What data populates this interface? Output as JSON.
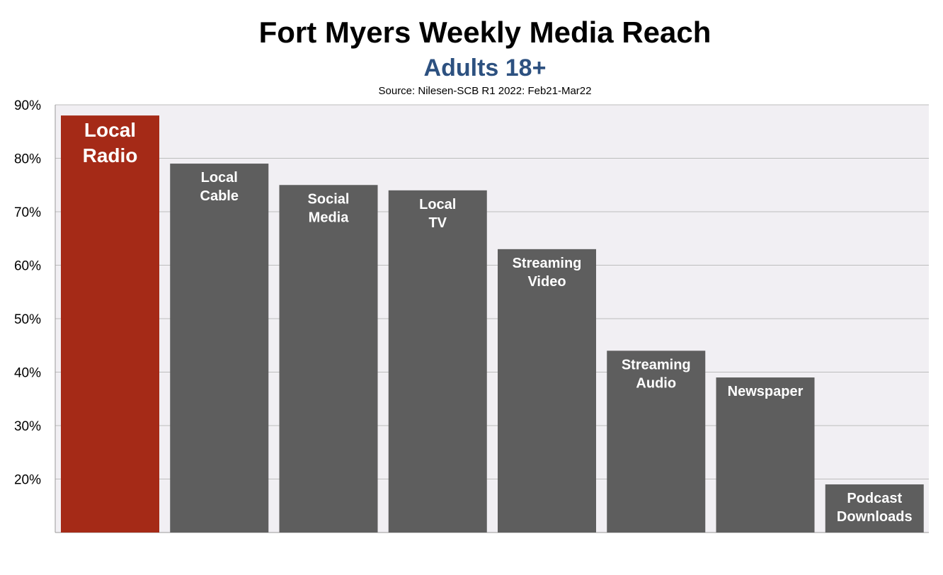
{
  "chart_data": {
    "type": "bar",
    "title": "Fort Myers Weekly Media Reach",
    "subtitle": "Adults 18+",
    "source": "Source: Nilesen-SCB R1 2022: Feb21-Mar22",
    "categories": [
      "Local Radio",
      "Local Cable",
      "Social Media",
      "Local TV",
      "Streaming Video",
      "Streaming Audio",
      "Newspaper",
      "Podcast Downloads"
    ],
    "bar_labels": [
      [
        "Local",
        "Radio"
      ],
      [
        "Local",
        "Cable"
      ],
      [
        "Social",
        "Media"
      ],
      [
        "Local",
        "TV"
      ],
      [
        "Streaming",
        "Video"
      ],
      [
        "Streaming",
        "Audio"
      ],
      [
        "Newspaper"
      ],
      [
        "Podcast",
        "Downloads"
      ]
    ],
    "values": [
      88,
      79,
      75,
      74,
      63,
      44,
      39,
      19
    ],
    "ylim": [
      10,
      90
    ],
    "yticks": [
      20,
      30,
      40,
      50,
      60,
      70,
      80,
      90
    ],
    "ytick_labels": [
      "20%",
      "30%",
      "40%",
      "50%",
      "60%",
      "70%",
      "80%",
      "90%"
    ],
    "xlabel": "",
    "ylabel": "",
    "grid": true,
    "colors": {
      "highlight": "#a52a17",
      "default": "#5e5e5e",
      "plot_background": "#f1eff3",
      "gridline": "#bdbdbd"
    }
  }
}
